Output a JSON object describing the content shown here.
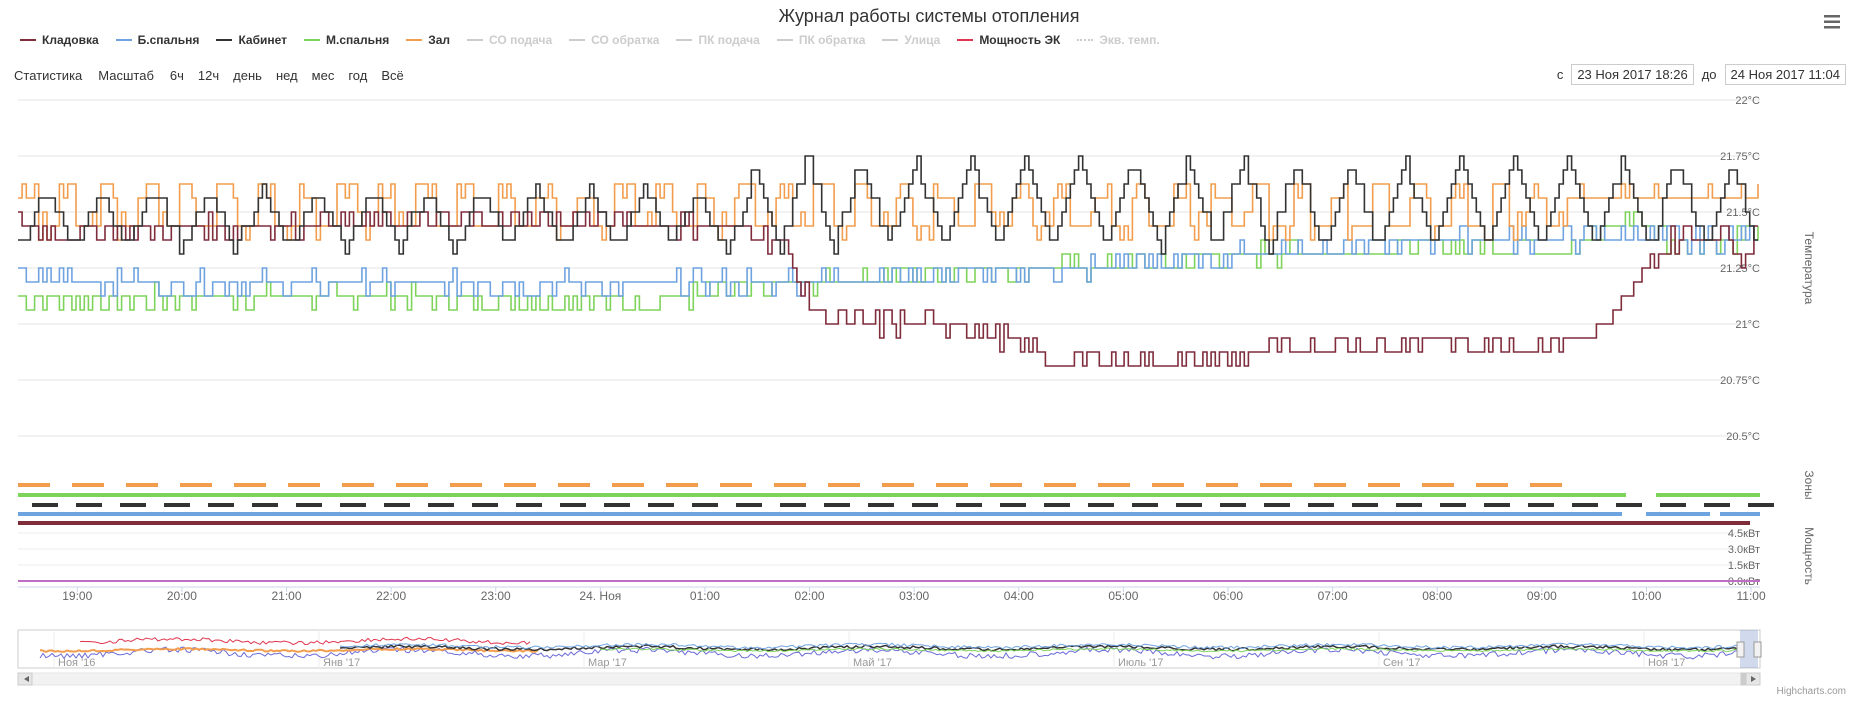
{
  "title": "Журнал работы системы отопления",
  "menu_icon": "hamburger-menu-icon",
  "legend": [
    {
      "name": "Кладовка",
      "color": "#7f2c3b",
      "visible": true
    },
    {
      "name": "Б.спальня",
      "color": "#6fa3e0",
      "visible": true
    },
    {
      "name": "Кабинет",
      "color": "#333333",
      "visible": true
    },
    {
      "name": "М.спальня",
      "color": "#7ed35b",
      "visible": true
    },
    {
      "name": "Зал",
      "color": "#f29d4d",
      "visible": true
    },
    {
      "name": "СО подача",
      "color": "#cccccc",
      "visible": false
    },
    {
      "name": "СО обратка",
      "color": "#cccccc",
      "visible": false
    },
    {
      "name": "ПК подача",
      "color": "#cccccc",
      "visible": false
    },
    {
      "name": "ПК обратка",
      "color": "#cccccc",
      "visible": false
    },
    {
      "name": "Улица",
      "color": "#cccccc",
      "visible": false
    },
    {
      "name": "Мощность ЭК",
      "color": "#e0364f",
      "visible": true
    },
    {
      "name": "Экв. темп.",
      "color": "#cccccc",
      "visible": false
    }
  ],
  "range_selector": {
    "stats_label": "Статистика",
    "zoom_label": "Масштаб",
    "buttons": [
      "6ч",
      "12ч",
      "день",
      "нед",
      "мес",
      "год",
      "Всё"
    ]
  },
  "dates": {
    "from_label": "с",
    "from_value": "23 Ноя 2017 18:26",
    "to_label": "до",
    "to_value": "24 Ноя 2017 11:04"
  },
  "credits": "Highcharts.com",
  "chart_data": {
    "type": "line",
    "x_range": [
      "23 Ноя 2017 18:26",
      "24 Ноя 2017 11:04"
    ],
    "x_ticks": [
      "19:00",
      "20:00",
      "21:00",
      "22:00",
      "23:00",
      "24. Ноя",
      "01:00",
      "02:00",
      "03:00",
      "04:00",
      "05:00",
      "06:00",
      "07:00",
      "08:00",
      "09:00",
      "10:00",
      "11:00"
    ],
    "temperature_axis": {
      "title": "Температура",
      "ylim": [
        20.5,
        22
      ],
      "ticks": [
        "22°C",
        "21.75°C",
        "21.5°C",
        "21.25°C",
        "21°C",
        "20.75°C",
        "20.5°C"
      ]
    },
    "zones_axis": {
      "title": "Зоны"
    },
    "power_axis": {
      "title": "Мощность",
      "ylim": [
        0,
        4.5
      ],
      "ticks": [
        "4.5кВт",
        "3.0кВт",
        "1.5кВт",
        "0.0кВт"
      ]
    },
    "series": [
      {
        "name": "Кладовка",
        "color": "#7f2c3b",
        "approx_values": [
          [
            0,
            21.45
          ],
          [
            0.5,
            21.4
          ],
          [
            1,
            21.42
          ],
          [
            2,
            21.43
          ],
          [
            3,
            21.45
          ],
          [
            4,
            21.46
          ],
          [
            5,
            21.45
          ],
          [
            6,
            21.45
          ],
          [
            7,
            21.42
          ],
          [
            7.3,
            21.35
          ],
          [
            7.6,
            21.05
          ],
          [
            8,
            21.0
          ],
          [
            9,
            21.0
          ],
          [
            9.5,
            20.92
          ],
          [
            10,
            20.82
          ],
          [
            10.5,
            20.85
          ],
          [
            11,
            20.82
          ],
          [
            11.5,
            20.85
          ],
          [
            12,
            20.88
          ],
          [
            13,
            20.9
          ],
          [
            13.5,
            20.93
          ],
          [
            14,
            20.92
          ],
          [
            14.5,
            20.9
          ],
          [
            15,
            20.95
          ],
          [
            15.3,
            21.05
          ],
          [
            15.5,
            21.2
          ],
          [
            15.8,
            21.38
          ],
          [
            16.3,
            21.4
          ],
          [
            16.5,
            21.3
          ],
          [
            16.6,
            21.42
          ]
        ]
      },
      {
        "name": "Б.спальня",
        "color": "#6fa3e0",
        "approx_values": [
          [
            0,
            21.2
          ],
          [
            2,
            21.18
          ],
          [
            4,
            21.18
          ],
          [
            6,
            21.18
          ],
          [
            7,
            21.19
          ],
          [
            8,
            21.2
          ],
          [
            9,
            21.23
          ],
          [
            10,
            21.24
          ],
          [
            11,
            21.28
          ],
          [
            12,
            21.33
          ],
          [
            13,
            21.36
          ],
          [
            14,
            21.38
          ],
          [
            15,
            21.38
          ],
          [
            15.5,
            21.4
          ],
          [
            16,
            21.36
          ],
          [
            16.6,
            21.4
          ]
        ]
      },
      {
        "name": "Кабинет",
        "color": "#333333",
        "approx_values": [
          [
            0,
            21.4
          ],
          [
            16.6,
            21.45
          ]
        ],
        "oscillation": [
          21.35,
          21.62,
          21.75
        ]
      },
      {
        "name": "М.спальня",
        "color": "#7ed35b",
        "approx_values": [
          [
            0,
            21.1
          ],
          [
            2,
            21.12
          ],
          [
            4,
            21.12
          ],
          [
            6,
            21.1
          ],
          [
            7,
            21.15
          ],
          [
            8,
            21.2
          ],
          [
            9,
            21.24
          ],
          [
            10,
            21.25
          ],
          [
            11,
            21.27
          ],
          [
            12,
            21.32
          ],
          [
            13,
            21.33
          ],
          [
            14,
            21.35
          ],
          [
            15,
            21.36
          ],
          [
            15.5,
            21.5
          ],
          [
            15.8,
            21.35
          ],
          [
            16.6,
            21.4
          ]
        ]
      },
      {
        "name": "Зал",
        "color": "#f29d4d",
        "approx_values": [
          [
            0,
            21.5
          ],
          [
            16.6,
            21.55
          ]
        ],
        "oscillation": [
          21.4,
          21.6,
          21.65
        ]
      },
      {
        "name": "Мощность ЭК",
        "color": "#e0364f",
        "values_kw": [
          0.0
        ]
      }
    ],
    "zones": [
      "Зал",
      "М.спальня",
      "Кабинет",
      "Б.спальня",
      "Кладовка"
    ],
    "navigator": {
      "x_ticks": [
        "Ноя '16",
        "Янв '17",
        "Мар '17",
        "Май '17",
        "Июль '17",
        "Сен '17",
        "Ноя '17"
      ]
    },
    "grid": true,
    "legend_position": "top"
  }
}
